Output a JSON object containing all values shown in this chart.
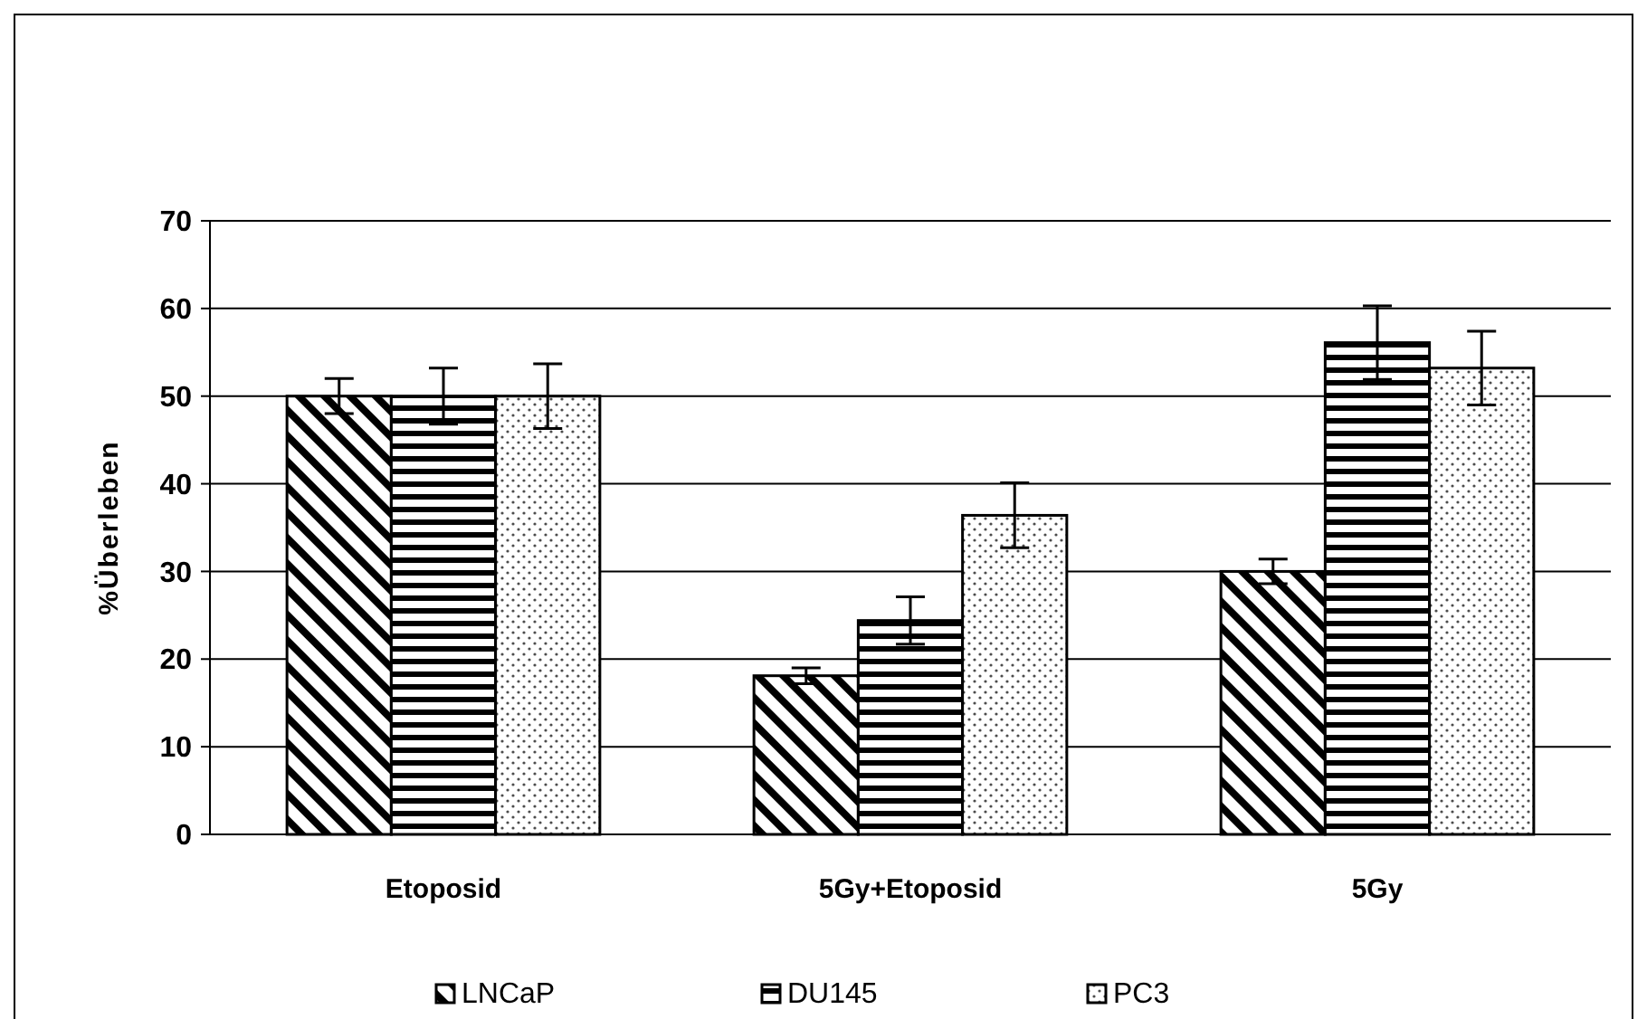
{
  "chart_data": {
    "type": "bar",
    "ylabel": "%Überleben",
    "categories": [
      "Etoposid",
      "5Gy+Etoposid",
      "5Gy"
    ],
    "series": [
      {
        "name": "LNCaP",
        "color": "#000000",
        "values": [
          50,
          18.1,
          30
        ],
        "errors": [
          2,
          0.9,
          1.4
        ]
      },
      {
        "name": "DU145",
        "color": "#000000",
        "values": [
          50,
          24.4,
          56.1
        ],
        "errors": [
          3.2,
          2.7,
          4.2
        ]
      },
      {
        "name": "PC3",
        "color": "#000000",
        "values": [
          50,
          36.4,
          53.2
        ],
        "errors": [
          3.7,
          3.7,
          4.2
        ]
      }
    ],
    "ylim": [
      0,
      70
    ],
    "yticks": [
      0,
      10,
      20,
      30,
      40,
      50,
      60,
      70
    ],
    "grid": "y",
    "legend": "bottom"
  }
}
